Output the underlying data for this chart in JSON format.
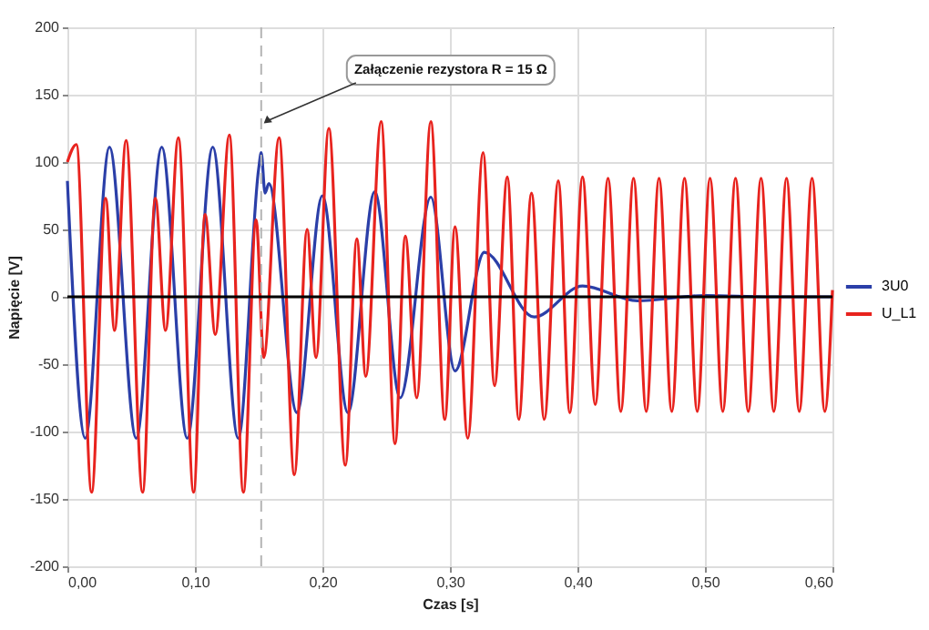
{
  "chart_data": {
    "type": "line",
    "xlabel": "Czas [s]",
    "ylabel": "Napięcie [V]",
    "xlim": [
      0,
      0.6
    ],
    "ylim": [
      -200,
      200
    ],
    "xticks": [
      {
        "value": 0,
        "label": "0,00"
      },
      {
        "value": 0.1,
        "label": "0,10"
      },
      {
        "value": 0.2,
        "label": "0,20"
      },
      {
        "value": 0.3,
        "label": "0,30"
      },
      {
        "value": 0.4,
        "label": "0,40"
      },
      {
        "value": 0.5,
        "label": "0,50"
      },
      {
        "value": 0.6,
        "label": "0,60"
      }
    ],
    "yticks": [
      -200,
      -150,
      -100,
      -50,
      0,
      50,
      100,
      150,
      200
    ],
    "grid": true,
    "legend": "right",
    "marker": "none",
    "line_style": "solid",
    "series": [
      {
        "name": "3U0",
        "color": "#2b3fa8",
        "x": [
          0,
          0.014,
          0.033,
          0.054,
          0.074,
          0.094,
          0.114,
          0.134,
          0.15,
          0.152,
          0.155,
          0.158,
          0.18,
          0.2,
          0.22,
          0.241,
          0.261,
          0.285,
          0.304,
          0.327,
          0.366,
          0.404,
          0.447,
          0.5,
          0.55,
          0.6
        ],
        "values": [
          86,
          -105,
          111,
          -105,
          111,
          -105,
          111,
          -105,
          95,
          107,
          77,
          84,
          -86,
          75,
          -86,
          78,
          -75,
          74,
          -55,
          33,
          -15,
          8,
          -3,
          1,
          0,
          0
        ]
      },
      {
        "name": "U_L1",
        "color": "#e8231e",
        "x": [
          0,
          0.007,
          0.019,
          0.03,
          0.037,
          0.046,
          0.059,
          0.069,
          0.077,
          0.087,
          0.099,
          0.108,
          0.116,
          0.127,
          0.138,
          0.148,
          0.154,
          0.166,
          0.178,
          0.188,
          0.195,
          0.205,
          0.218,
          0.227,
          0.234,
          0.246,
          0.257,
          0.265,
          0.274,
          0.285,
          0.296,
          0.304,
          0.314,
          0.326,
          0.335,
          0.345,
          0.354,
          0.364,
          0.374,
          0.385,
          0.394,
          0.404,
          0.414,
          0.424,
          0.434,
          0.444,
          0.454,
          0.464,
          0.474,
          0.484,
          0.494,
          0.504,
          0.514,
          0.524,
          0.534,
          0.544,
          0.554,
          0.564,
          0.574,
          0.584,
          0.594,
          0.6
        ],
        "values": [
          100,
          113,
          -145,
          73,
          -25,
          116,
          -145,
          73,
          -25,
          118,
          -145,
          61,
          -28,
          120,
          -145,
          57,
          -45,
          118,
          -132,
          50,
          -45,
          125,
          -125,
          43,
          -59,
          130,
          -109,
          45,
          -75,
          130,
          -91,
          52,
          -105,
          107,
          -66,
          89,
          -91,
          77,
          -91,
          86,
          -86,
          89,
          -80,
          88,
          -85,
          88,
          -85,
          88,
          -85,
          88,
          -85,
          88,
          -85,
          88,
          -85,
          88,
          -85,
          88,
          -85,
          88,
          -85,
          5
        ]
      }
    ],
    "ref_lines": [
      {
        "axis": "x",
        "value": 0.152,
        "color": "#b4b4b4",
        "line_style": "dashed"
      },
      {
        "axis": "y",
        "value": 0,
        "color": "#000000",
        "line_style": "solid"
      }
    ],
    "annotations": [
      {
        "text": "Załączenie rezystora R = 15 Ω",
        "x": 0.152,
        "y": 125
      }
    ]
  }
}
